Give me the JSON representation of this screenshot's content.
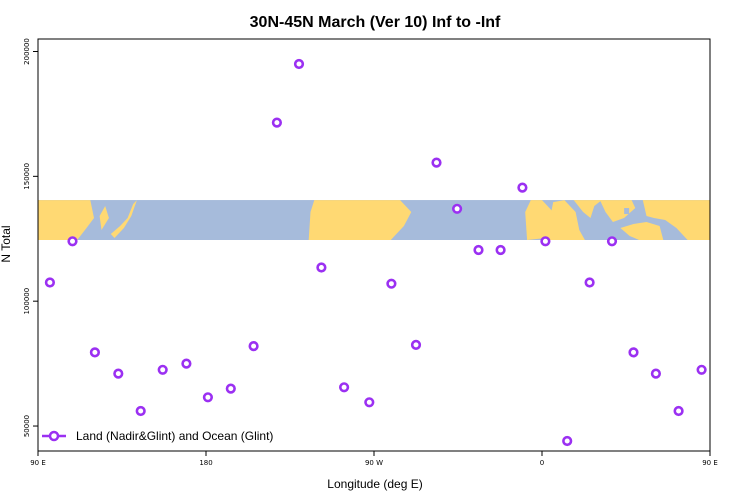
{
  "chart_data": {
    "type": "scatter",
    "title": "30N-45N March (Ver 10)   Inf to -Inf",
    "xlabel": "Longitude (deg E)",
    "ylabel": "N Total",
    "xlim": [
      90,
      450
    ],
    "ylim": [
      40000,
      205000
    ],
    "x_ticks": [
      {
        "value": 90,
        "label": "90 E"
      },
      {
        "value": 180,
        "label": "180"
      },
      {
        "value": 270,
        "label": "90 W"
      },
      {
        "value": 360,
        "label": "0"
      },
      {
        "value": 450,
        "label": "90 E"
      },
      {
        "value": 540,
        "label": "180"
      }
    ],
    "y_ticks": [
      {
        "value": 50000,
        "label": "50000"
      },
      {
        "value": 100000,
        "label": "100000"
      },
      {
        "value": 150000,
        "label": "150000"
      },
      {
        "value": 200000,
        "label": "200000"
      }
    ],
    "map_band": {
      "lat_range": [
        30,
        45
      ],
      "y_range": [
        124500,
        140500
      ],
      "land_color": "#ffd973",
      "ocean_color": "#a6bbdb"
    },
    "series": [
      {
        "name": "Land (Nadir&Glint) and Ocean (Glint)",
        "color": "#9b30f2",
        "x": [
          96.4,
          108.5,
          120.5,
          133.0,
          145.0,
          156.8,
          169.5,
          181.0,
          193.3,
          205.5,
          218.0,
          229.8,
          241.8,
          254.0,
          267.5,
          279.3,
          292.5,
          303.5,
          314.5,
          326.0,
          337.8,
          349.5,
          361.8,
          373.5,
          385.5,
          397.5,
          409.0,
          421.0,
          433.2,
          445.5
        ],
        "y": [
          107500,
          124000,
          79500,
          71000,
          56000,
          72500,
          75000,
          61500,
          65000,
          82000,
          171500,
          195000,
          113500,
          65500,
          59500,
          107000,
          82500,
          155500,
          137000,
          120500,
          120500,
          145500,
          124000,
          44000,
          107500,
          124000,
          79500,
          71000,
          56000,
          72500
        ]
      }
    ],
    "legend": {
      "position": "bottom-left"
    }
  }
}
